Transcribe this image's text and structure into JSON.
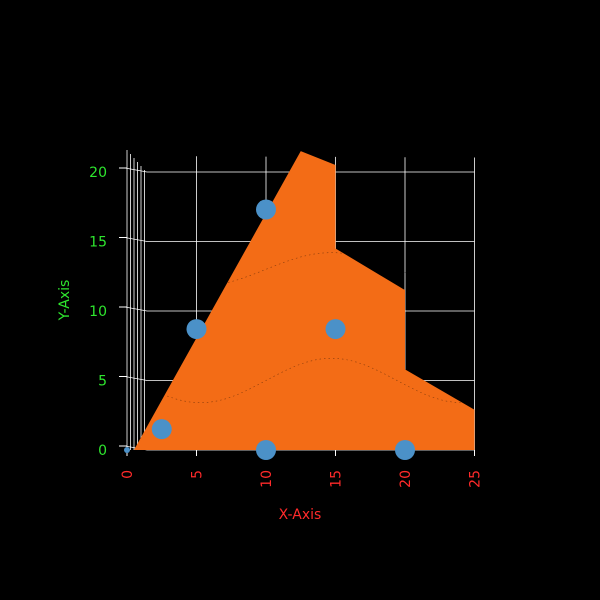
{
  "chart_data": {
    "type": "area",
    "title": "",
    "xlabel": "X-Axis",
    "ylabel": "Y-Axis",
    "xlim": [
      0,
      25
    ],
    "ylim": [
      0,
      20
    ],
    "x_ticks": [
      "0",
      "5",
      "10",
      "15",
      "20",
      "25"
    ],
    "y_ticks": [
      "0",
      "5",
      "10",
      "15",
      "20"
    ],
    "grid": true,
    "series": [
      {
        "type": "area",
        "x": [
          0.5,
          12.5,
          15,
          15,
          20,
          20,
          25,
          25,
          0.5
        ],
        "y": [
          0,
          21.5,
          20.5,
          14.5,
          11.5,
          5.8,
          2.9,
          0,
          0
        ],
        "color": "#f36c16"
      },
      {
        "type": "scatter",
        "x": [
          0,
          2.5,
          5,
          10,
          10,
          15,
          20
        ],
        "y": [
          0,
          1.5,
          8.7,
          17.3,
          0,
          8.7,
          0
        ],
        "color": "#4b91c8"
      }
    ],
    "colors": {
      "background": "#000000",
      "grid": "#ffffff",
      "x_axis_text": "#ff2a2a",
      "y_axis_text": "#2ee62e"
    }
  }
}
